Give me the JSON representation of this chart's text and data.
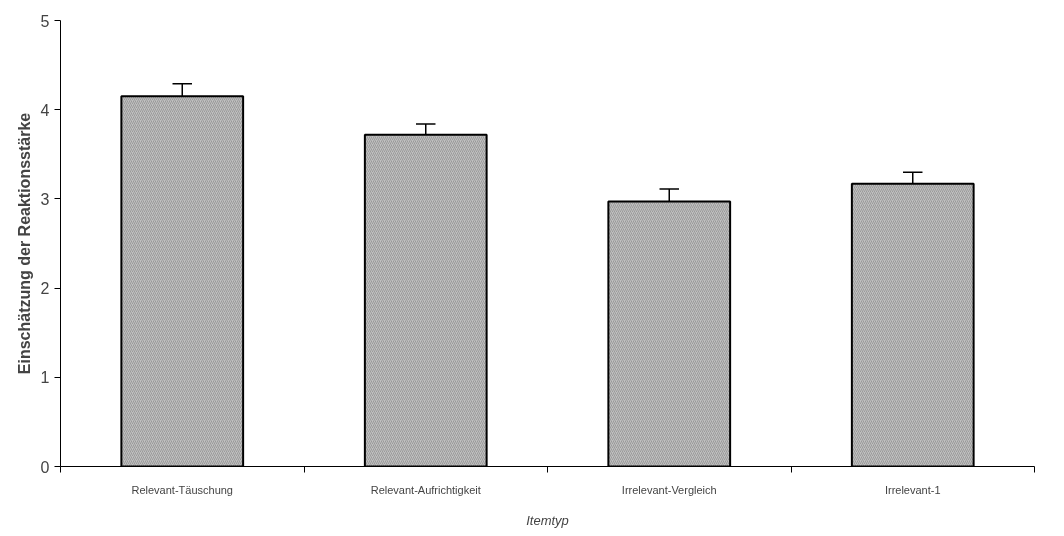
{
  "chart_data": {
    "type": "bar",
    "xlabel": "Itemtyp",
    "ylabel": "Einschätzung der Reaktionsstärke",
    "categories": [
      "Relevant-Täuschung",
      "Relevant-Aufrichtigkeit",
      "Irrelevant-Vergleich",
      "Irrelevant-1"
    ],
    "values": [
      4.15,
      3.72,
      2.97,
      3.17
    ],
    "errors": [
      [
        4.15,
        4.29
      ],
      [
        3.72,
        3.84
      ],
      [
        2.97,
        3.11
      ],
      [
        3.17,
        3.3
      ]
    ],
    "color": "#c0c0c0",
    "ylim": [
      0,
      5
    ],
    "yticks": [
      0,
      1,
      2,
      3,
      4,
      5
    ],
    "grid": false
  }
}
